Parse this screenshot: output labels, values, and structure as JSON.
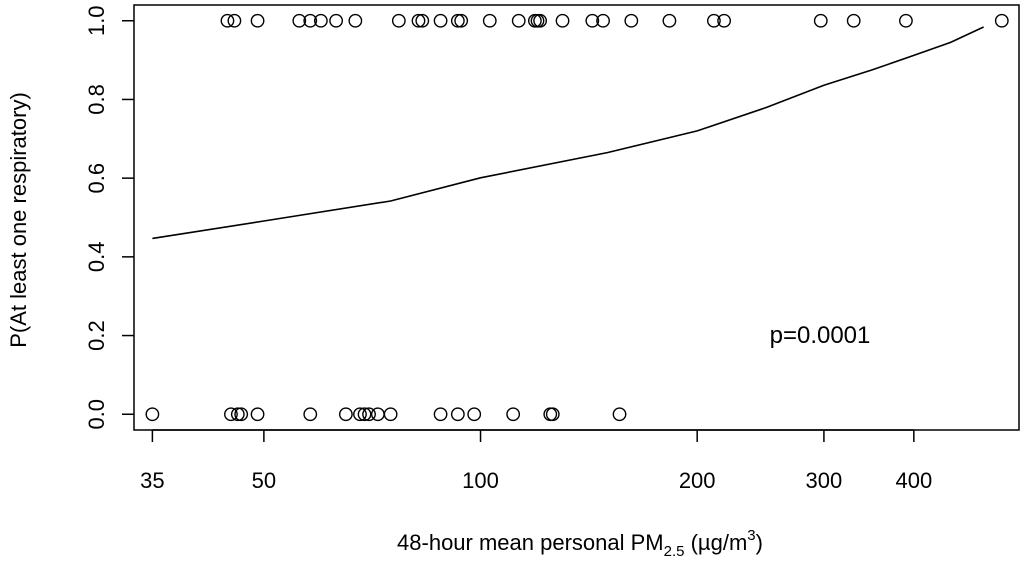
{
  "chart_data": {
    "type": "scatter",
    "x_scale": "log",
    "xlim": [
      33,
      560
    ],
    "ylim": [
      -0.04,
      1.04
    ],
    "xlabel_parts": {
      "main": "48-hour mean personal PM",
      "sub": "2.5",
      "unit_open": " (µg/m",
      "sup": "3",
      "unit_close": ")"
    },
    "ylabel": "P(At least one respiratory)",
    "x_ticks": [
      35,
      50,
      100,
      200,
      300,
      400
    ],
    "x_tick_labels": [
      "35",
      "50",
      "100",
      "200",
      "300",
      "400"
    ],
    "y_ticks": [
      0.0,
      0.2,
      0.4,
      0.6,
      0.8,
      1.0
    ],
    "y_tick_labels": [
      "0.0",
      "0.2",
      "0.4",
      "0.6",
      "0.8",
      "1.0"
    ],
    "grid": false,
    "legend": "none",
    "annotation": "p=0.0001",
    "points": [
      {
        "x": 35,
        "y": 0
      },
      {
        "x": 45,
        "y": 0
      },
      {
        "x": 46,
        "y": 0
      },
      {
        "x": 46.5,
        "y": 0
      },
      {
        "x": 49,
        "y": 0
      },
      {
        "x": 58,
        "y": 0
      },
      {
        "x": 65,
        "y": 0
      },
      {
        "x": 68,
        "y": 0
      },
      {
        "x": 69,
        "y": 0
      },
      {
        "x": 70,
        "y": 0
      },
      {
        "x": 72,
        "y": 0
      },
      {
        "x": 75,
        "y": 0
      },
      {
        "x": 88,
        "y": 0
      },
      {
        "x": 93,
        "y": 0
      },
      {
        "x": 98,
        "y": 0
      },
      {
        "x": 111,
        "y": 0
      },
      {
        "x": 125,
        "y": 0
      },
      {
        "x": 126,
        "y": 0
      },
      {
        "x": 156,
        "y": 0
      },
      {
        "x": 44.5,
        "y": 1
      },
      {
        "x": 45.5,
        "y": 1
      },
      {
        "x": 49,
        "y": 1
      },
      {
        "x": 56,
        "y": 1
      },
      {
        "x": 58,
        "y": 1
      },
      {
        "x": 60,
        "y": 1
      },
      {
        "x": 63,
        "y": 1
      },
      {
        "x": 67,
        "y": 1
      },
      {
        "x": 77,
        "y": 1
      },
      {
        "x": 82,
        "y": 1
      },
      {
        "x": 83,
        "y": 1
      },
      {
        "x": 88,
        "y": 1
      },
      {
        "x": 93,
        "y": 1
      },
      {
        "x": 94,
        "y": 1
      },
      {
        "x": 103,
        "y": 1
      },
      {
        "x": 113,
        "y": 1
      },
      {
        "x": 119,
        "y": 1
      },
      {
        "x": 120,
        "y": 1
      },
      {
        "x": 121,
        "y": 1
      },
      {
        "x": 130,
        "y": 1
      },
      {
        "x": 143,
        "y": 1
      },
      {
        "x": 148,
        "y": 1
      },
      {
        "x": 162,
        "y": 1
      },
      {
        "x": 183,
        "y": 1
      },
      {
        "x": 211,
        "y": 1
      },
      {
        "x": 218,
        "y": 1
      },
      {
        "x": 297,
        "y": 1
      },
      {
        "x": 330,
        "y": 1
      },
      {
        "x": 390,
        "y": 1
      },
      {
        "x": 530,
        "y": 1
      }
    ],
    "series": [
      {
        "type": "line",
        "x": [
          35,
          50,
          75,
          100,
          150,
          200,
          250,
          300,
          350,
          400,
          450,
          500
        ],
        "y": [
          0.447,
          0.491,
          0.542,
          0.601,
          0.665,
          0.72,
          0.78,
          0.836,
          0.875,
          0.912,
          0.945,
          0.984
        ]
      }
    ]
  }
}
